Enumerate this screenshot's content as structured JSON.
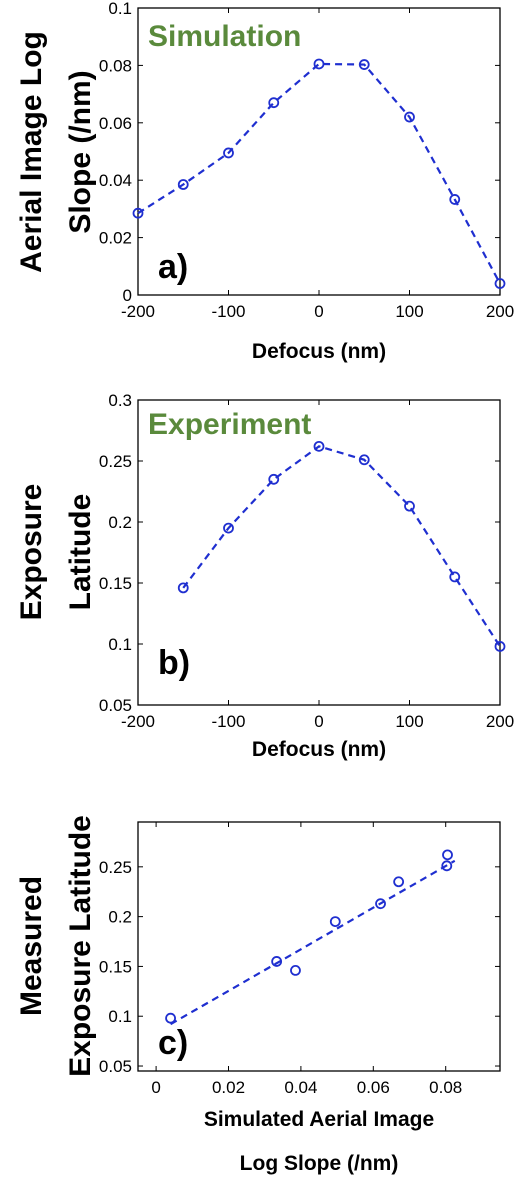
{
  "chart_data": [
    {
      "type": "line",
      "panel_label": "a)",
      "annotation": "Simulation",
      "annotation_color": "#5a8a3c",
      "xlabel": "Defocus (nm)",
      "ylabel_lines": [
        "Aerial Image Log",
        "Slope (/nm)"
      ],
      "xlim": [
        -200,
        200
      ],
      "ylim": [
        0,
        0.1
      ],
      "xticks": [
        -200,
        -100,
        0,
        100,
        200
      ],
      "yticks": [
        0,
        0.02,
        0.04,
        0.06,
        0.08,
        0.1
      ],
      "xtick_labels": [
        "-200",
        "-100",
        "0",
        "100",
        "200"
      ],
      "ytick_labels": [
        "0",
        "0.02",
        "0.04",
        "0.06",
        "0.08",
        "0.1"
      ],
      "grid": false,
      "series": [
        {
          "color": "#1f2fd0",
          "style": "dashed-line-circle-markers",
          "x": [
            -200,
            -150,
            -100,
            -50,
            0,
            50,
            100,
            150,
            200
          ],
          "y": [
            0.0285,
            0.0385,
            0.0495,
            0.067,
            0.0805,
            0.0803,
            0.062,
            0.0333,
            0.004
          ]
        }
      ]
    },
    {
      "type": "line",
      "panel_label": "b)",
      "annotation": "Experiment",
      "annotation_color": "#5a8a3c",
      "xlabel": "Defocus (nm)",
      "ylabel_lines": [
        "Exposure",
        "Latitude"
      ],
      "xlim": [
        -200,
        200
      ],
      "ylim": [
        0.05,
        0.3
      ],
      "xticks": [
        -200,
        -100,
        0,
        100,
        200
      ],
      "yticks": [
        0.05,
        0.1,
        0.15,
        0.2,
        0.25,
        0.3
      ],
      "xtick_labels": [
        "-200",
        "-100",
        "0",
        "100",
        "200"
      ],
      "ytick_labels": [
        "0.05",
        "0.1",
        "0.15",
        "0.2",
        "0.25",
        "0.3"
      ],
      "grid": false,
      "series": [
        {
          "color": "#1f2fd0",
          "style": "dashed-line-circle-markers",
          "x": [
            -150,
            -100,
            -50,
            0,
            50,
            100,
            150,
            200
          ],
          "y": [
            0.146,
            0.195,
            0.235,
            0.262,
            0.251,
            0.213,
            0.155,
            0.098
          ]
        }
      ]
    },
    {
      "type": "scatter",
      "panel_label": "c)",
      "xlabel_lines": [
        "Simulated Aerial Image",
        "Log Slope (/nm)"
      ],
      "ylabel_lines": [
        "Measured",
        "Exposure Latitude"
      ],
      "xlim": [
        -0.005,
        0.095
      ],
      "ylim": [
        0.045,
        0.295
      ],
      "xticks": [
        0,
        0.02,
        0.04,
        0.06,
        0.08
      ],
      "yticks": [
        0.05,
        0.1,
        0.15,
        0.2,
        0.25
      ],
      "xtick_labels": [
        "0",
        "0.02",
        "0.04",
        "0.06",
        "0.08"
      ],
      "ytick_labels": [
        "0.05",
        "0.1",
        "0.15",
        "0.2",
        "0.25"
      ],
      "grid": false,
      "series": [
        {
          "color": "#1f2fd0",
          "style": "circle-markers",
          "x": [
            0.004,
            0.0333,
            0.0385,
            0.0495,
            0.062,
            0.067,
            0.0803,
            0.0805
          ],
          "y": [
            0.098,
            0.155,
            0.146,
            0.195,
            0.213,
            0.235,
            0.251,
            0.262
          ]
        }
      ],
      "fit_line": {
        "color": "#1f2fd0",
        "style": "dashed",
        "x": [
          0.004,
          0.0825
        ],
        "y": [
          0.092,
          0.256
        ]
      }
    }
  ]
}
